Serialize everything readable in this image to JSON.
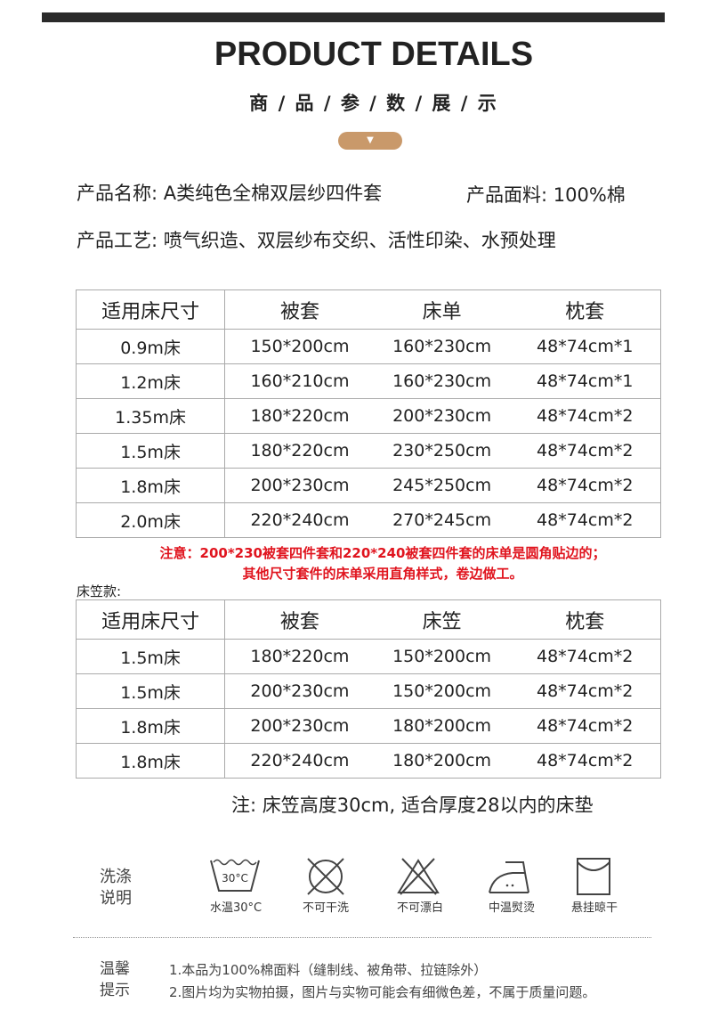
{
  "header": {
    "title": "PRODUCT DETAILS",
    "subtitle": "商 / 品 / 参 / 数 / 展 / 示",
    "pill_icon": "down-triangle-icon",
    "accent_color": "#c9996a"
  },
  "info": {
    "name": "产品名称: A类纯色全棉双层纱四件套",
    "fabric": "产品面料: 100%棉",
    "craft": "产品工艺: 喷气织造、双层纱布交织、活性印染、水预处理"
  },
  "table1": {
    "headers": [
      "适用床尺寸",
      "被套",
      "床单",
      "枕套"
    ],
    "rows": [
      [
        "0.9m床",
        "150*200cm",
        "160*230cm",
        "48*74cm*1"
      ],
      [
        "1.2m床",
        "160*210cm",
        "160*230cm",
        "48*74cm*1"
      ],
      [
        "1.35m床",
        "180*220cm",
        "200*230cm",
        "48*74cm*2"
      ],
      [
        "1.5m床",
        "180*220cm",
        "230*250cm",
        "48*74cm*2"
      ],
      [
        "1.8m床",
        "200*230cm",
        "245*250cm",
        "48*74cm*2"
      ],
      [
        "2.0m床",
        "220*240cm",
        "270*245cm",
        "48*74cm*2"
      ]
    ]
  },
  "note": {
    "line1": "注意：200*230被套四件套和220*240被套四件套的床单是圆角贴边的；",
    "line2": "其他尺寸套件的床单采用直角样式，卷边做工。",
    "color": "#e0141e"
  },
  "fitted_label": "床笠款:",
  "table2": {
    "headers": [
      "适用床尺寸",
      "被套",
      "床笠",
      "枕套"
    ],
    "rows": [
      [
        "1.5m床",
        "180*220cm",
        "150*200cm",
        "48*74cm*2"
      ],
      [
        "1.5m床",
        "200*230cm",
        "150*200cm",
        "48*74cm*2"
      ],
      [
        "1.8m床",
        "200*230cm",
        "180*200cm",
        "48*74cm*2"
      ],
      [
        "1.8m床",
        "220*240cm",
        "180*200cm",
        "48*74cm*2"
      ]
    ]
  },
  "fitted_note": "注: 床笠高度30cm, 适合厚度28以内的床垫",
  "care": {
    "label1": "洗涤",
    "label2": "说明",
    "items": [
      {
        "icon": "wash-30-icon",
        "label": "水温30°C",
        "icon_text": "30°C"
      },
      {
        "icon": "no-dry-clean-icon",
        "label": "不可干洗"
      },
      {
        "icon": "no-bleach-icon",
        "label": "不可漂白"
      },
      {
        "icon": "iron-medium-icon",
        "label": "中温熨烫"
      },
      {
        "icon": "hang-dry-icon",
        "label": "悬挂晾干"
      }
    ]
  },
  "tips": {
    "label1": "温馨",
    "label2": "提示",
    "line1": "1.本品为100%棉面料（缝制线、被角带、拉链除外）",
    "line2": "2.图片均为实物拍摄，图片与实物可能会有细微色差，不属于质量问题。"
  }
}
